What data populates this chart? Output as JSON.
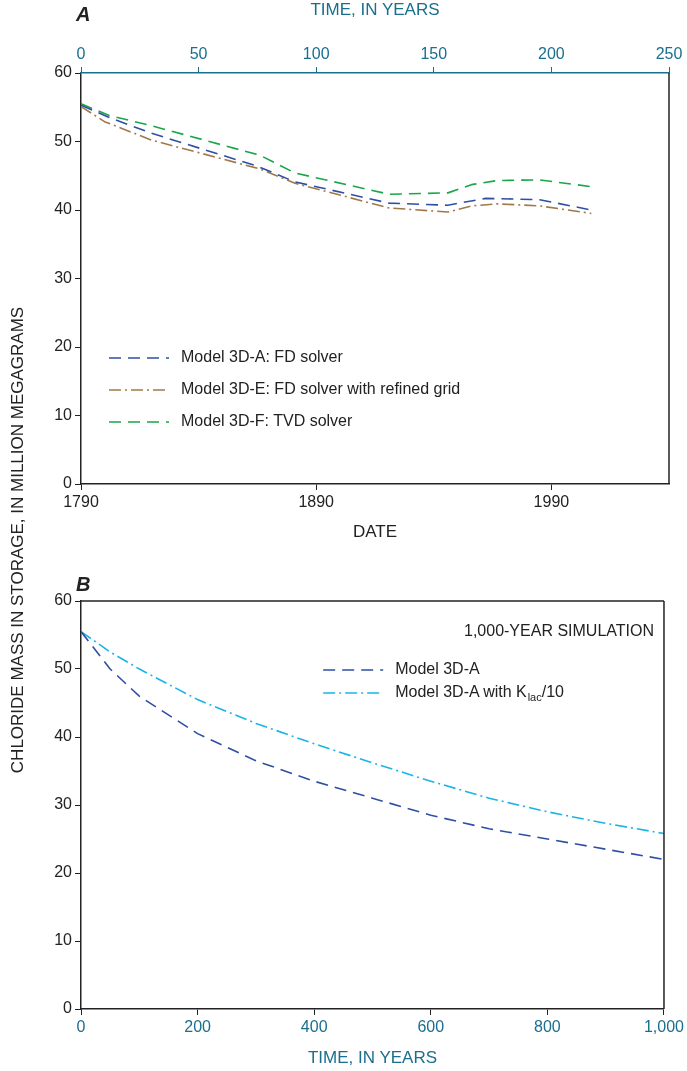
{
  "chart_data": [
    {
      "type": "line",
      "title": "A",
      "xlabel": "DATE",
      "ylabel": "CHLORIDE MASS IN STORAGE, IN MILLION MEGAGRAMS",
      "x2label": "TIME, IN YEARS",
      "xlim": [
        1790,
        2040
      ],
      "xticks": [
        1790,
        1890,
        1990
      ],
      "x2lim": [
        0,
        250
      ],
      "x2ticks": [
        0,
        50,
        100,
        150,
        200,
        250
      ],
      "ylim": [
        0,
        60
      ],
      "yticks": [
        0,
        10,
        20,
        30,
        40,
        50,
        60
      ],
      "grid": false,
      "legend": "bottom left",
      "marker": "none",
      "series": [
        {
          "name": "Model 3D-A: FD solver",
          "color": "#2e4fa3",
          "line_style": "dashed",
          "x": [
            1790,
            1802,
            1820,
            1865,
            1881,
            1921,
            1946,
            1962,
            1985,
            2007
          ],
          "values": [
            55.3,
            53.5,
            51.2,
            46.4,
            44.1,
            41.0,
            40.7,
            41.7,
            41.5,
            40.0
          ]
        },
        {
          "name": "Model 3D-E: FD solver with refined grid",
          "color": "#a0784a",
          "line_style": "dashdot",
          "x": [
            1790,
            1800,
            1820,
            1866,
            1881,
            1921,
            1946,
            1956,
            1967,
            1985,
            2007
          ],
          "values": [
            55.1,
            52.9,
            50.2,
            46.0,
            43.9,
            40.3,
            39.7,
            40.6,
            40.9,
            40.6,
            39.5
          ]
        },
        {
          "name": "Model 3D-F: TVD solver",
          "color": "#1aa64a",
          "line_style": "dashed",
          "x": [
            1790,
            1802,
            1820,
            1866,
            1881,
            1921,
            1946,
            1956,
            1967,
            1985,
            2007
          ],
          "values": [
            55.5,
            53.8,
            52.3,
            48.0,
            45.4,
            42.3,
            42.5,
            43.7,
            44.3,
            44.4,
            43.4
          ]
        }
      ]
    },
    {
      "type": "line",
      "title": "B",
      "xlabel": "TIME, IN YEARS",
      "xlim": [
        0,
        1000
      ],
      "xticks": [
        0,
        200,
        400,
        600,
        800,
        {
          "value": 1000,
          "label": "1,000"
        }
      ],
      "ylim": [
        0,
        60
      ],
      "yticks": [
        0,
        10,
        20,
        30,
        40,
        50,
        60
      ],
      "grid": false,
      "legend": "top right",
      "marker": "none",
      "annotations": [
        "1,000-YEAR SIMULATION"
      ],
      "series": [
        {
          "name": "Model 3D-A",
          "color": "#2e4fa3",
          "line_style": "dashed",
          "x": [
            0,
            50,
            100,
            200,
            300,
            400,
            500,
            600,
            700,
            800,
            900,
            1000
          ],
          "values": [
            55.5,
            50,
            46,
            40.5,
            36.5,
            33.5,
            31,
            28.5,
            26.5,
            25,
            23.5,
            22
          ]
        },
        {
          "name": "Model 3D-A with K$_{lac}$/10",
          "color": "#1ab4e8",
          "line_style": "dashdot",
          "x": [
            0,
            50,
            100,
            200,
            300,
            400,
            500,
            600,
            700,
            800,
            900,
            1000
          ],
          "values": [
            55.5,
            52.5,
            50,
            45.5,
            42,
            39,
            36.2,
            33.5,
            31,
            29,
            27.3,
            25.8
          ]
        }
      ]
    }
  ]
}
